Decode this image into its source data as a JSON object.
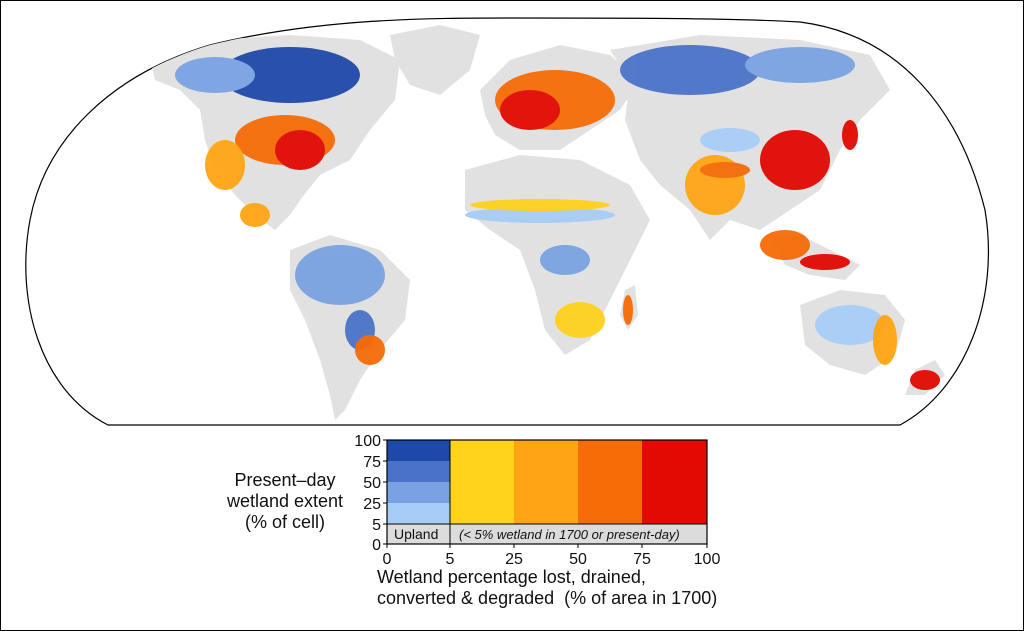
{
  "legend": {
    "y_axis_title_lines": [
      "Present–day",
      "wetland extent",
      "(% of cell)"
    ],
    "x_axis_title_lines": [
      "Wetland percentage lost, drained,",
      "converted & degraded  (% of area in 1700)"
    ],
    "y_ticks": [
      "100",
      "75",
      "50",
      "25",
      "5",
      "0"
    ],
    "x_ticks": [
      "0",
      "5",
      "25",
      "50",
      "75",
      "100"
    ],
    "upland_label": "Upland",
    "upland_note": "(< 5% wetland in 1700 or present-day)",
    "extent_colors": [
      "#1f49a8",
      "#4a73c8",
      "#7aa2e2",
      "#a7ccf5"
    ],
    "loss_colors": [
      "#ffd21c",
      "#ffa514",
      "#f66c07",
      "#e20a02"
    ],
    "upland_color": "#dcdcdc"
  },
  "map": {
    "land_color": "#e1e1e1",
    "ocean_color": "#ffffff"
  }
}
